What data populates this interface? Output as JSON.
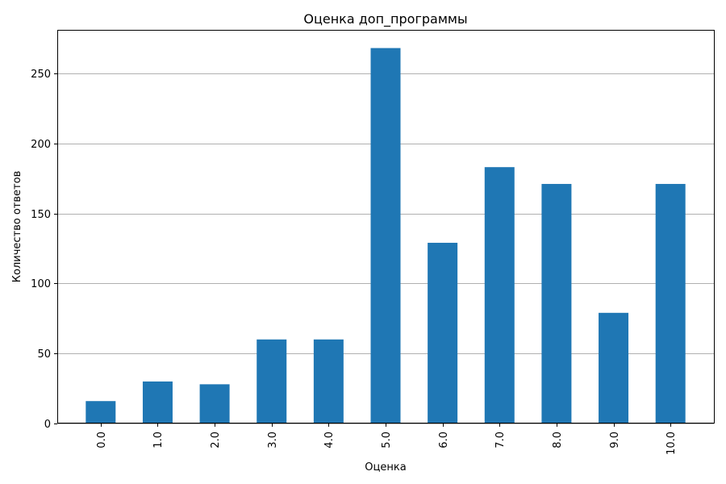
{
  "chart_data": {
    "type": "bar",
    "title": "Оценка доп_программы",
    "xlabel": "Оценка",
    "ylabel": "Количество ответов",
    "categories": [
      "0.0",
      "1.0",
      "2.0",
      "3.0",
      "4.0",
      "5.0",
      "6.0",
      "7.0",
      "8.0",
      "9.0",
      "10.0"
    ],
    "values": [
      16,
      30,
      28,
      60,
      60,
      268,
      129,
      183,
      171,
      79,
      171
    ],
    "ylim": [
      0,
      281
    ],
    "yticks": [
      0,
      50,
      100,
      150,
      200,
      250
    ],
    "grid": "y-axis horizontal lines",
    "legend": "none",
    "bar_color": "#1f77b4"
  }
}
